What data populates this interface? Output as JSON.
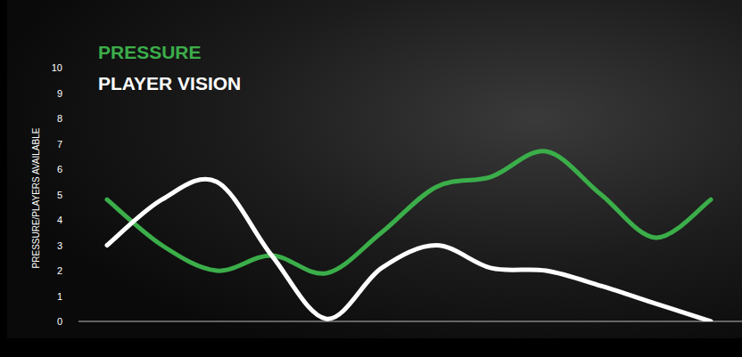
{
  "chart_data": {
    "type": "line",
    "categories": [
      null,
      null,
      null,
      null,
      null,
      null,
      null,
      null,
      null,
      null,
      null,
      null
    ],
    "series": [
      {
        "name": "PRESSURE",
        "color": "#3bae4a",
        "values": [
          4.8,
          3.0,
          2.0,
          2.6,
          1.9,
          3.5,
          5.3,
          5.7,
          6.7,
          5.0,
          3.3,
          4.8
        ]
      },
      {
        "name": "PLAYER VISION",
        "color": "#ffffff",
        "values": [
          3.0,
          4.8,
          5.5,
          2.6,
          0.1,
          2.1,
          3.0,
          2.1,
          2.0,
          1.4,
          0.7,
          0.0
        ]
      }
    ],
    "y_label": "PRESSURE/PLAYERS AVAILABLE",
    "ylim": [
      0,
      10
    ],
    "yticks": [
      0,
      1,
      2,
      3,
      4,
      5,
      6,
      7,
      8,
      9,
      10
    ],
    "grid": false,
    "legend": "top-left",
    "tick_labels": "y"
  }
}
